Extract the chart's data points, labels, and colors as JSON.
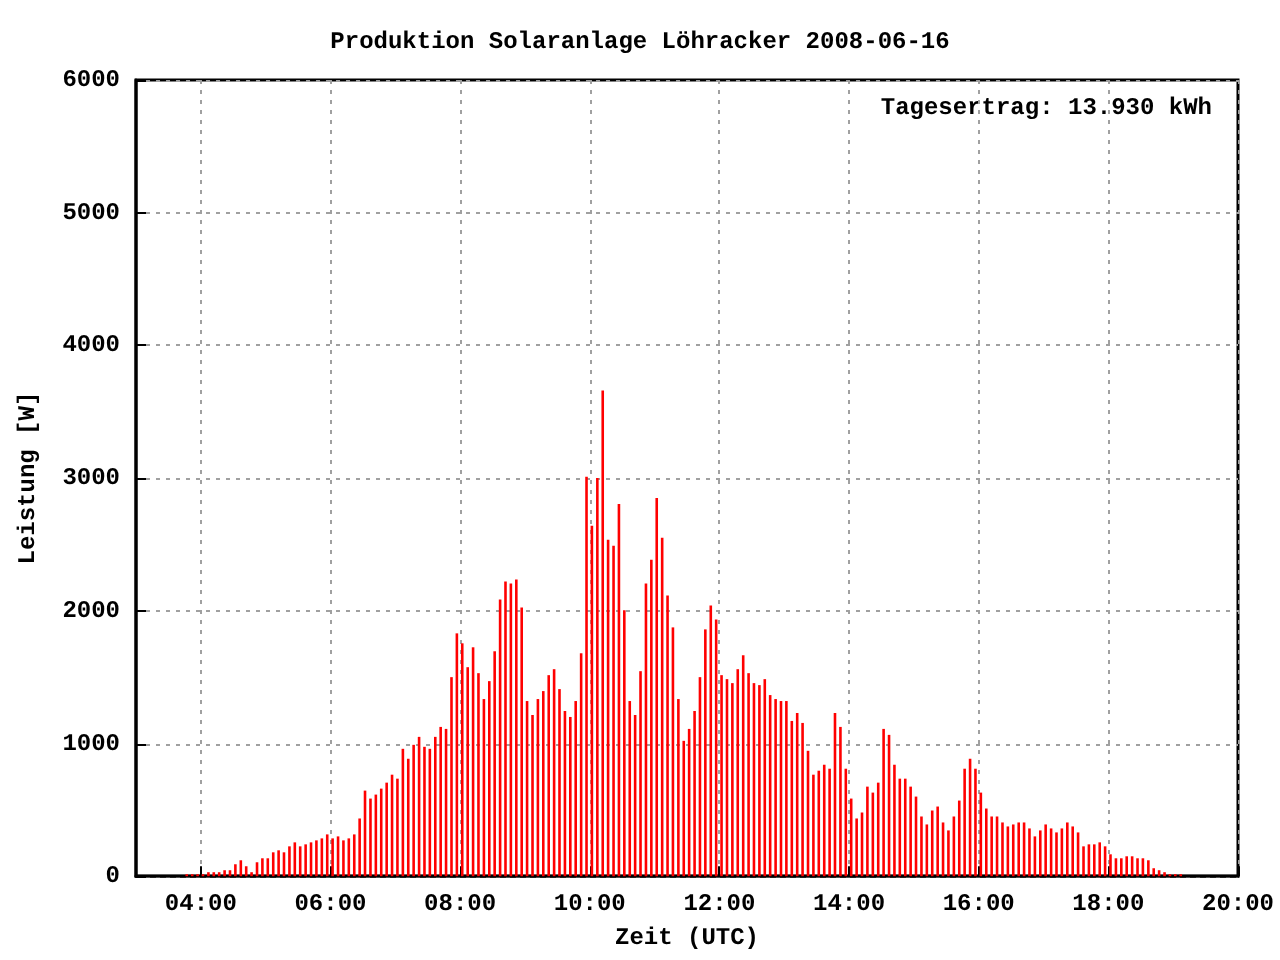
{
  "chart_data": {
    "type": "bar",
    "title": "Produktion Solaranlage Löhracker 2008-06-16",
    "xlabel": "Zeit (UTC)",
    "ylabel": "Leistung [W]",
    "annotations": [
      "Tagesertrag: 13.930 kWh"
    ],
    "x": [
      3.783,
      3.867,
      3.95,
      4.033,
      4.117,
      4.2,
      4.283,
      4.367,
      4.45,
      4.533,
      4.617,
      4.7,
      4.783,
      4.867,
      4.95,
      5.033,
      5.117,
      5.2,
      5.283,
      5.367,
      5.45,
      5.533,
      5.617,
      5.7,
      5.783,
      5.867,
      5.95,
      6.033,
      6.117,
      6.2,
      6.283,
      6.367,
      6.45,
      6.533,
      6.617,
      6.7,
      6.783,
      6.867,
      6.95,
      7.033,
      7.117,
      7.2,
      7.283,
      7.367,
      7.45,
      7.533,
      7.617,
      7.7,
      7.783,
      7.867,
      7.95,
      8.033,
      8.117,
      8.2,
      8.283,
      8.367,
      8.45,
      8.533,
      8.617,
      8.7,
      8.783,
      8.867,
      8.95,
      9.033,
      9.117,
      9.2,
      9.283,
      9.367,
      9.45,
      9.533,
      9.617,
      9.7,
      9.783,
      9.867,
      9.95,
      10.033,
      10.117,
      10.2,
      10.283,
      10.367,
      10.45,
      10.533,
      10.617,
      10.7,
      10.783,
      10.867,
      10.95,
      11.033,
      11.117,
      11.2,
      11.283,
      11.367,
      11.45,
      11.533,
      11.617,
      11.7,
      11.783,
      11.867,
      11.95,
      12.033,
      12.117,
      12.2,
      12.283,
      12.367,
      12.45,
      12.533,
      12.617,
      12.7,
      12.783,
      12.867,
      12.95,
      13.033,
      13.117,
      13.2,
      13.283,
      13.367,
      13.45,
      13.533,
      13.617,
      13.7,
      13.783,
      13.867,
      13.95,
      14.033,
      14.117,
      14.2,
      14.283,
      14.367,
      14.45,
      14.533,
      14.617,
      14.7,
      14.783,
      14.867,
      14.95,
      15.033,
      15.117,
      15.2,
      15.283,
      15.367,
      15.45,
      15.533,
      15.617,
      15.7,
      15.783,
      15.867,
      15.95,
      16.033,
      16.117,
      16.2,
      16.283,
      16.367,
      16.45,
      16.533,
      16.617,
      16.7,
      16.783,
      16.867,
      16.95,
      17.033,
      17.117,
      17.2,
      17.283,
      17.367,
      17.45,
      17.533,
      17.617,
      17.7,
      17.783,
      17.867,
      17.95,
      18.033,
      18.117,
      18.2,
      18.283,
      18.367,
      18.45,
      18.533,
      18.617,
      18.7,
      18.783,
      18.867,
      18.95,
      19.033,
      19.117
    ],
    "values": [
      15,
      15,
      15,
      15,
      30,
      30,
      30,
      45,
      45,
      90,
      120,
      75,
      30,
      105,
      135,
      135,
      180,
      195,
      180,
      225,
      255,
      225,
      240,
      255,
      270,
      285,
      315,
      285,
      300,
      270,
      285,
      315,
      435,
      645,
      585,
      615,
      660,
      705,
      765,
      735,
      960,
      885,
      990,
      1050,
      975,
      960,
      1050,
      1125,
      1110,
      1500,
      1830,
      1755,
      1575,
      1725,
      1530,
      1335,
      1470,
      1695,
      2085,
      2220,
      2205,
      2235,
      2025,
      1320,
      1215,
      1335,
      1395,
      1515,
      1560,
      1410,
      1245,
      1200,
      1320,
      1680,
      3010,
      2640,
      3000,
      3660,
      2535,
      2490,
      2805,
      2005,
      1320,
      1215,
      1545,
      2205,
      2385,
      2850,
      2550,
      2115,
      1875,
      1335,
      1020,
      1110,
      1245,
      1500,
      1860,
      2040,
      1935,
      1515,
      1485,
      1455,
      1560,
      1665,
      1530,
      1455,
      1440,
      1485,
      1365,
      1335,
      1320,
      1320,
      1170,
      1230,
      1155,
      945,
      765,
      795,
      840,
      810,
      1230,
      1125,
      810,
      585,
      435,
      480,
      675,
      630,
      705,
      1110,
      1065,
      840,
      735,
      735,
      675,
      600,
      450,
      390,
      495,
      525,
      405,
      345,
      450,
      570,
      810,
      885,
      810,
      630,
      510,
      450,
      450,
      405,
      375,
      390,
      405,
      405,
      360,
      300,
      345,
      390,
      360,
      330,
      360,
      405,
      375,
      330,
      225,
      240,
      240,
      255,
      225,
      165,
      135,
      135,
      150,
      150,
      135,
      135,
      120,
      60,
      45,
      30,
      15,
      15,
      15
    ],
    "color": "#ff0000",
    "xlim": [
      3,
      20
    ],
    "xticks": [
      {
        "value": 4,
        "label": "04:00"
      },
      {
        "value": 6,
        "label": "06:00"
      },
      {
        "value": 8,
        "label": "08:00"
      },
      {
        "value": 10,
        "label": "10:00"
      },
      {
        "value": 12,
        "label": "12:00"
      },
      {
        "value": 14,
        "label": "14:00"
      },
      {
        "value": 16,
        "label": "16:00"
      },
      {
        "value": 18,
        "label": "18:00"
      },
      {
        "value": 20,
        "label": "20:00"
      }
    ],
    "ylim": [
      0,
      6000
    ],
    "yticks": [
      0,
      1000,
      2000,
      3000,
      4000,
      5000,
      6000
    ],
    "grid": true
  }
}
